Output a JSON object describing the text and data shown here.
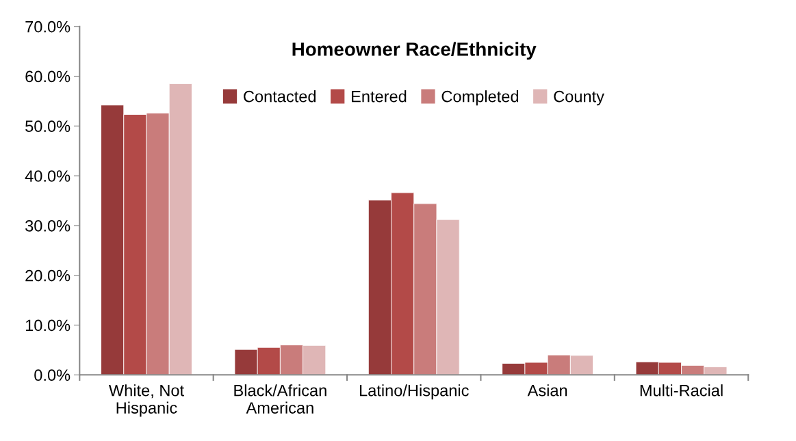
{
  "chart_data": {
    "type": "bar",
    "title": "Homeowner Race/Ethnicity",
    "categories": [
      "White, Not\nHispanic",
      "Black/African\nAmerican",
      "Latino/Hispanic",
      "Asian",
      "Multi-Racial"
    ],
    "series": [
      {
        "name": "Contacted",
        "color": "#963a3a",
        "values": [
          54.2,
          5.1,
          35.1,
          2.3,
          2.6
        ]
      },
      {
        "name": "Entered",
        "color": "#b34a48",
        "values": [
          52.3,
          5.5,
          36.6,
          2.5,
          2.5
        ]
      },
      {
        "name": "Completed",
        "color": "#c97c7b",
        "values": [
          52.6,
          6.0,
          34.4,
          4.0,
          1.9
        ]
      },
      {
        "name": "County",
        "color": "#dfb6b6",
        "values": [
          58.5,
          5.9,
          31.2,
          3.9,
          1.6
        ]
      }
    ],
    "ylim": [
      0,
      70
    ],
    "yticks": [
      {
        "value": 0,
        "label": "0.0%"
      },
      {
        "value": 10,
        "label": "10.0%"
      },
      {
        "value": 20,
        "label": "20.0%"
      },
      {
        "value": 30,
        "label": "30.0%"
      },
      {
        "value": 40,
        "label": "40.0%"
      },
      {
        "value": 50,
        "label": "50.0%"
      },
      {
        "value": 60,
        "label": "60.0%"
      },
      {
        "value": 70,
        "label": "70.0%"
      }
    ],
    "grid": false,
    "legend": "top"
  }
}
